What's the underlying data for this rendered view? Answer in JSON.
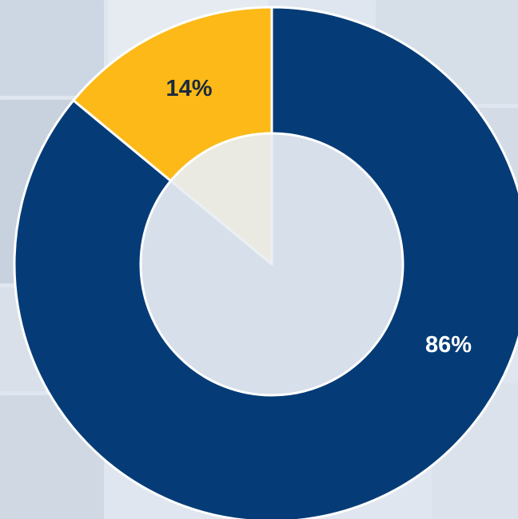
{
  "colors": {
    "primary": "#053c77",
    "accent": "#fcb917",
    "hole": "#e9eef4",
    "separator": "#ffffff"
  },
  "chart_data": {
    "type": "pie",
    "donut": true,
    "slices": [
      {
        "label": "86%",
        "value": 86,
        "color": "#053c77",
        "label_color": "#ffffff"
      },
      {
        "label": "14%",
        "value": 14,
        "color": "#fcb917",
        "label_color": "#1b2a3d"
      }
    ],
    "title": "",
    "legend": "none",
    "start_angle_deg": 0,
    "direction": "clockwise"
  }
}
